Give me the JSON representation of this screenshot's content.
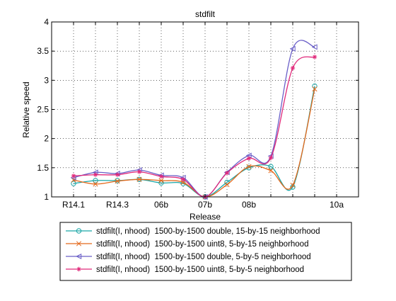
{
  "chart_data": {
    "type": "line",
    "title": "stdfilt",
    "xlabel": "Release",
    "ylabel": "Relative speed",
    "ylim": [
      1,
      4
    ],
    "yticks": [
      1,
      1.5,
      2,
      2.5,
      3,
      3.5,
      4
    ],
    "ytick_labels": [
      "1",
      "1.5",
      "2",
      "2.5",
      "3",
      "3.5",
      "4"
    ],
    "x_category_count": 13,
    "x_tick_positions": [
      1,
      2,
      3,
      4,
      5,
      6,
      7,
      8,
      9,
      10,
      11,
      12,
      13
    ],
    "x_tick_labels": [
      "R14.1",
      "",
      "R14.3",
      "",
      "06b",
      "",
      "07b",
      "",
      "08b",
      "",
      "",
      "",
      "10a"
    ],
    "grid": true,
    "legend_position": "bottom",
    "series": [
      {
        "name": "stdfilt(I, nhood)  1500-by-1500 double, 15-by-15 neighborhood",
        "color": "#1aa6a6",
        "marker": "circle",
        "values": [
          1.23,
          1.28,
          1.28,
          1.3,
          1.24,
          1.23,
          1.0,
          1.25,
          1.5,
          1.52,
          1.17,
          2.9,
          null
        ]
      },
      {
        "name": "stdfilt(I, nhood)  1500-by-1500 uint8, 5-by-15 neighborhood",
        "color": "#e4691c",
        "marker": "x",
        "values": [
          1.29,
          1.22,
          1.27,
          1.3,
          1.28,
          1.25,
          1.0,
          1.21,
          1.52,
          1.45,
          1.2,
          2.85,
          null
        ]
      },
      {
        "name": "stdfilt(I, nhood)  1500-by-1500 double, 5-by-5 neighborhood",
        "color": "#6a5fc8",
        "marker": "triangle-left",
        "values": [
          1.33,
          1.42,
          1.4,
          1.46,
          1.37,
          1.33,
          1.0,
          1.42,
          1.71,
          1.7,
          3.54,
          3.57,
          null
        ]
      },
      {
        "name": "stdfilt(I, nhood)  1500-by-1500 uint8, 5-by-5 neighborhood",
        "color": "#e0297a",
        "marker": "star",
        "values": [
          1.36,
          1.38,
          1.38,
          1.43,
          1.35,
          1.3,
          1.0,
          1.41,
          1.66,
          1.67,
          3.21,
          3.4,
          null
        ]
      }
    ]
  }
}
